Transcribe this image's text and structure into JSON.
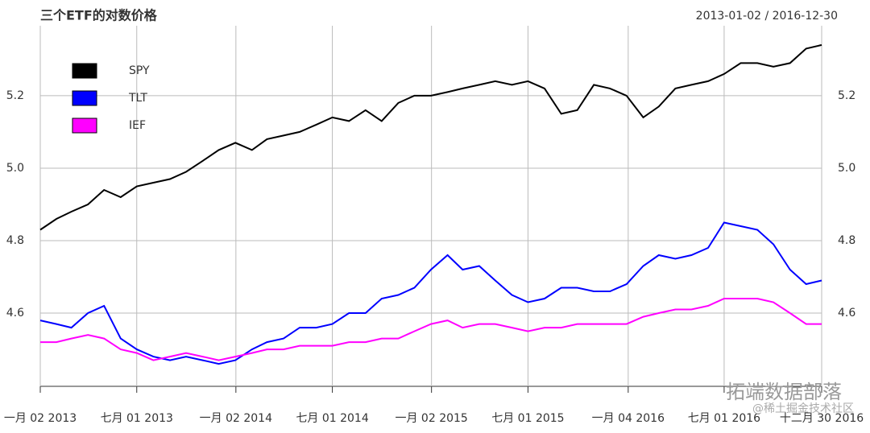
{
  "chart_data": {
    "type": "line",
    "title": "三个ETF的对数价格",
    "subtitle": "2013-01-02 / 2016-12-30",
    "x": [
      "2013-01-02",
      "2013-02-01",
      "2013-03-01",
      "2013-04-01",
      "2013-05-01",
      "2013-06-01",
      "2013-07-01",
      "2013-08-01",
      "2013-09-01",
      "2013-10-01",
      "2013-11-01",
      "2013-12-01",
      "2014-01-01",
      "2014-02-01",
      "2014-03-01",
      "2014-04-01",
      "2014-05-01",
      "2014-06-01",
      "2014-07-01",
      "2014-08-01",
      "2014-09-01",
      "2014-10-01",
      "2014-11-01",
      "2014-12-01",
      "2015-01-01",
      "2015-02-01",
      "2015-03-01",
      "2015-04-01",
      "2015-05-01",
      "2015-06-01",
      "2015-07-01",
      "2015-08-01",
      "2015-09-01",
      "2015-10-01",
      "2015-11-01",
      "2015-12-01",
      "2016-01-01",
      "2016-02-01",
      "2016-03-01",
      "2016-04-01",
      "2016-05-01",
      "2016-06-01",
      "2016-07-01",
      "2016-08-01",
      "2016-09-01",
      "2016-10-01",
      "2016-11-01",
      "2016-12-01",
      "2016-12-30"
    ],
    "series": [
      {
        "name": "SPY",
        "color": "#000000",
        "values": [
          4.83,
          4.86,
          4.88,
          4.9,
          4.94,
          4.92,
          4.95,
          4.96,
          4.97,
          4.99,
          5.02,
          5.05,
          5.07,
          5.05,
          5.08,
          5.09,
          5.1,
          5.12,
          5.14,
          5.13,
          5.16,
          5.13,
          5.18,
          5.2,
          5.2,
          5.21,
          5.22,
          5.23,
          5.24,
          5.23,
          5.24,
          5.22,
          5.15,
          5.16,
          5.23,
          5.22,
          5.2,
          5.14,
          5.17,
          5.22,
          5.23,
          5.24,
          5.26,
          5.29,
          5.29,
          5.28,
          5.29,
          5.33,
          5.34
        ]
      },
      {
        "name": "TLT",
        "color": "#0000ff",
        "values": [
          4.58,
          4.57,
          4.56,
          4.6,
          4.62,
          4.53,
          4.5,
          4.48,
          4.47,
          4.48,
          4.47,
          4.46,
          4.47,
          4.5,
          4.52,
          4.53,
          4.56,
          4.56,
          4.57,
          4.6,
          4.6,
          4.64,
          4.65,
          4.67,
          4.72,
          4.76,
          4.72,
          4.73,
          4.69,
          4.65,
          4.63,
          4.64,
          4.67,
          4.67,
          4.66,
          4.66,
          4.68,
          4.73,
          4.76,
          4.75,
          4.76,
          4.78,
          4.85,
          4.84,
          4.83,
          4.79,
          4.72,
          4.68,
          4.69
        ]
      },
      {
        "name": "IEF",
        "color": "#ff00ff",
        "values": [
          4.52,
          4.52,
          4.53,
          4.54,
          4.53,
          4.5,
          4.49,
          4.47,
          4.48,
          4.49,
          4.48,
          4.47,
          4.48,
          4.49,
          4.5,
          4.5,
          4.51,
          4.51,
          4.51,
          4.52,
          4.52,
          4.53,
          4.53,
          4.55,
          4.57,
          4.58,
          4.56,
          4.57,
          4.57,
          4.56,
          4.55,
          4.56,
          4.56,
          4.57,
          4.57,
          4.57,
          4.57,
          4.59,
          4.6,
          4.61,
          4.61,
          4.62,
          4.64,
          4.64,
          4.64,
          4.63,
          4.6,
          4.57,
          4.57
        ]
      }
    ],
    "xticks": [
      {
        "value": "2013-01-02",
        "label": "一月 02 2013"
      },
      {
        "value": "2013-07-01",
        "label": "七月 01 2013"
      },
      {
        "value": "2014-01-02",
        "label": "一月 02 2014"
      },
      {
        "value": "2014-07-01",
        "label": "七月 01 2014"
      },
      {
        "value": "2015-01-02",
        "label": "一月 02 2015"
      },
      {
        "value": "2015-07-01",
        "label": "七月 01 2015"
      },
      {
        "value": "2016-01-04",
        "label": "一月 04 2016"
      },
      {
        "value": "2016-07-01",
        "label": "七月 01 2016"
      },
      {
        "value": "2016-12-30",
        "label": "十二月 30 2016"
      }
    ],
    "ylim": [
      4.398,
      5.393
    ],
    "yticks": [
      4.6,
      4.8,
      {
        "value": 5,
        "label": "5.0"
      },
      5.2
    ],
    "grid": true,
    "legend": "top-left",
    "watermark": "拓端数据部落",
    "credit": "@稀土掘金技术社区"
  }
}
